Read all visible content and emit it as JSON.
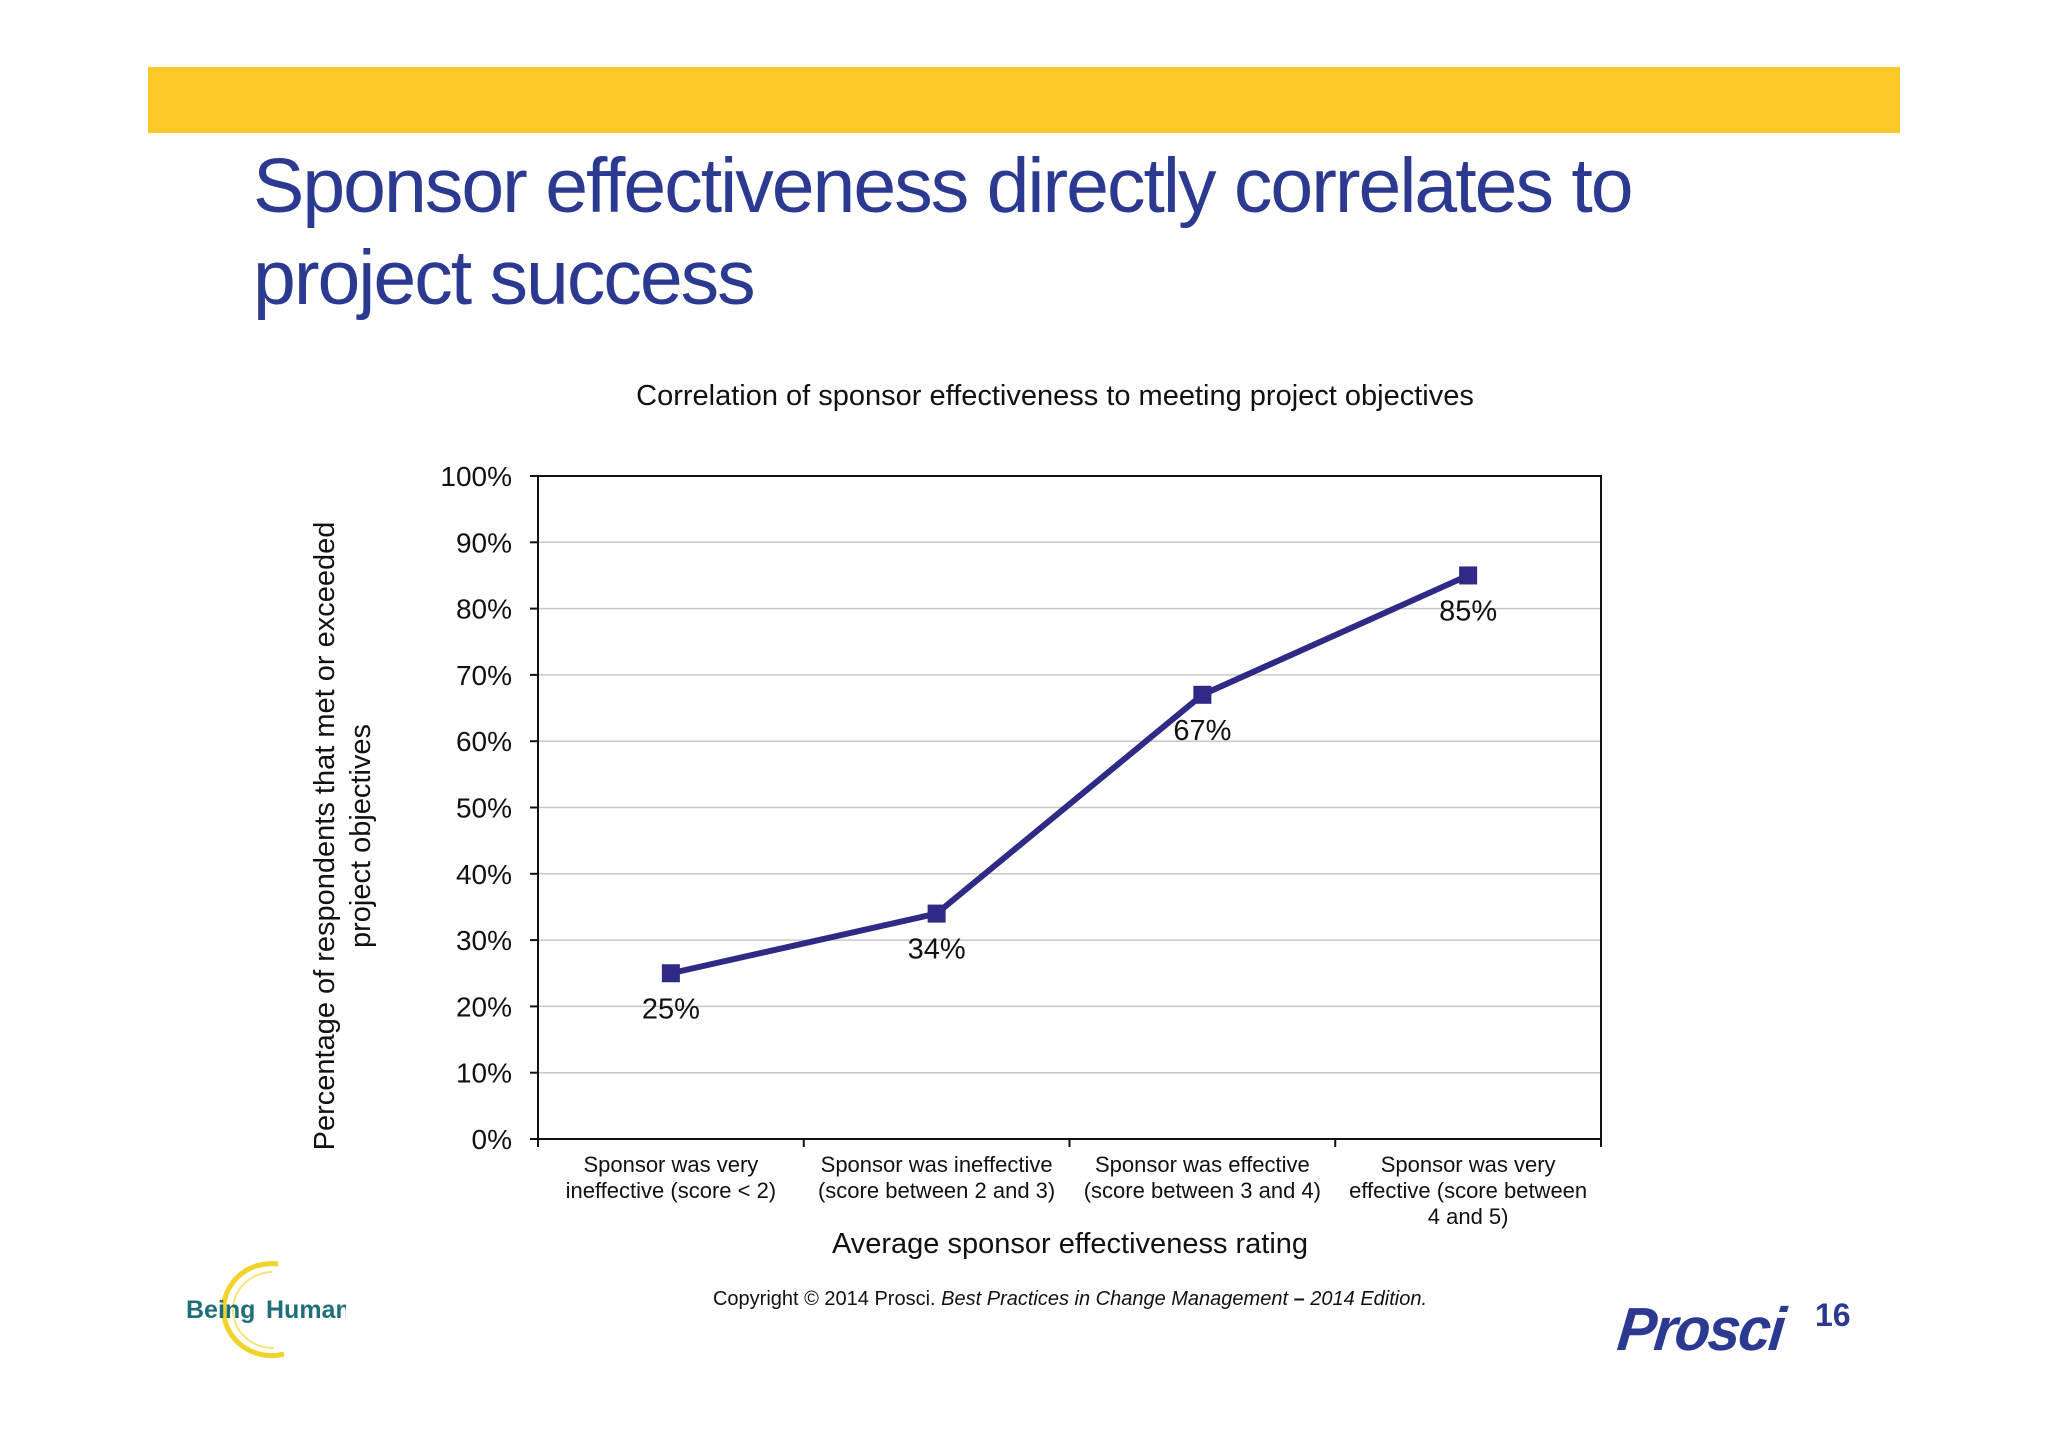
{
  "slide": {
    "title_line1": "Sponsor effectiveness directly correlates to",
    "title_line2": "project success",
    "copyright_prefix": "Copyright © 2014 Prosci. ",
    "copyright_italic": "Best Practices in Change Management",
    "copyright_dash": " – ",
    "copyright_edition": "2014 Edition.",
    "page_number": "16",
    "logo_left_text": "Being Human",
    "logo_right_text": "Prosci",
    "colors": {
      "banner": "#fcc926",
      "title": "#2b3990",
      "series": "#2e2a86"
    }
  },
  "chart_data": {
    "type": "line",
    "title": "Correlation of sponsor effectiveness to meeting project objectives",
    "ylabel": "Percentage of respondents that met or exceeded project objectives",
    "xlabel": "Average sponsor effectiveness rating",
    "categories": [
      [
        "Sponsor was very",
        "ineffective (score < 2)"
      ],
      [
        "Sponsor was ineffective",
        "(score between 2 and 3)"
      ],
      [
        "Sponsor was effective",
        "(score between 3 and 4)"
      ],
      [
        "Sponsor was very",
        "effective (score between",
        "4 and 5)"
      ]
    ],
    "series": [
      {
        "values": [
          25,
          34,
          67,
          85
        ],
        "labels": [
          "25%",
          "34%",
          "67%",
          "85%"
        ]
      }
    ],
    "ylim": [
      0,
      100
    ],
    "yticks": [
      0,
      10,
      20,
      30,
      40,
      50,
      60,
      70,
      80,
      90,
      100
    ],
    "ytick_labels": [
      "0%",
      "10%",
      "20%",
      "30%",
      "40%",
      "50%",
      "60%",
      "70%",
      "80%",
      "90%",
      "100%"
    ],
    "grid": true,
    "legend": "none",
    "marker": "square"
  }
}
